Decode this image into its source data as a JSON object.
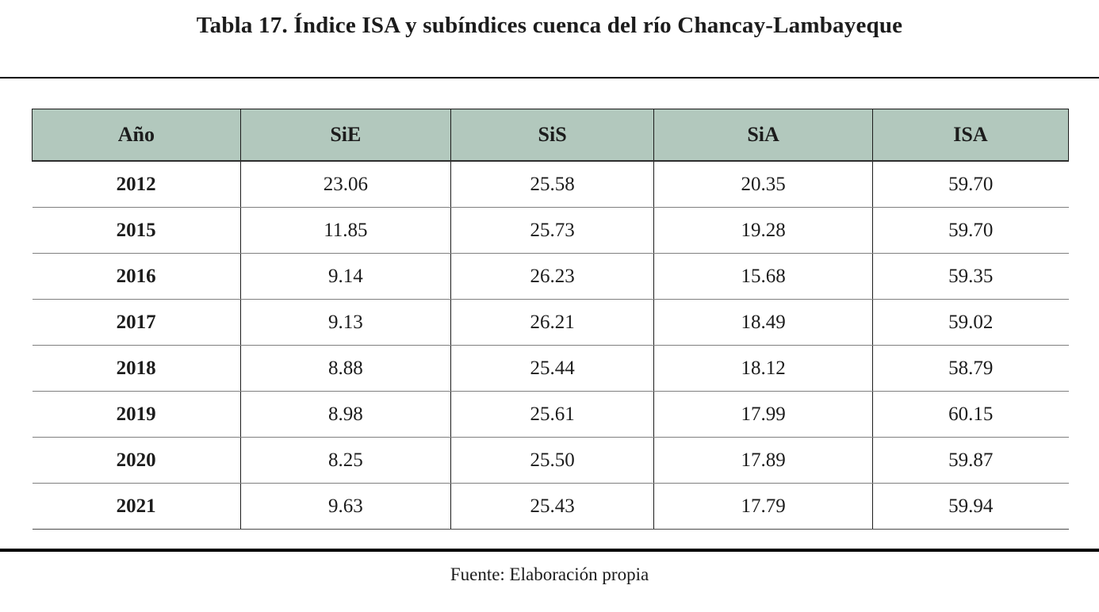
{
  "title": "Tabla 17. Índice ISA y subíndices cuenca del río Chancay-Lambayeque",
  "source_note": "Fuente: Elaboración propia",
  "colors": {
    "header_bg": "#b2c8bd",
    "text": "#1c1c1c",
    "row_separator": "#7f7f7f",
    "rule": "#000000"
  },
  "table": {
    "columns": [
      "Año",
      "SiE",
      "SiS",
      "SiA",
      "ISA"
    ],
    "column_width_percents": [
      20.1,
      20.3,
      19.6,
      21.1,
      18.9
    ],
    "rows": [
      [
        "2012",
        "23.06",
        "25.58",
        "20.35",
        "59.70"
      ],
      [
        "2015",
        "11.85",
        "25.73",
        "19.28",
        "59.70"
      ],
      [
        "2016",
        "9.14",
        "26.23",
        "15.68",
        "59.35"
      ],
      [
        "2017",
        "9.13",
        "26.21",
        "18.49",
        "59.02"
      ],
      [
        "2018",
        "8.88",
        "25.44",
        "18.12",
        "58.79"
      ],
      [
        "2019",
        "8.98",
        "25.61",
        "17.99",
        "60.15"
      ],
      [
        "2020",
        "8.25",
        "25.50",
        "17.89",
        "59.87"
      ],
      [
        "2021",
        "9.63",
        "25.43",
        "17.79",
        "59.94"
      ]
    ]
  }
}
